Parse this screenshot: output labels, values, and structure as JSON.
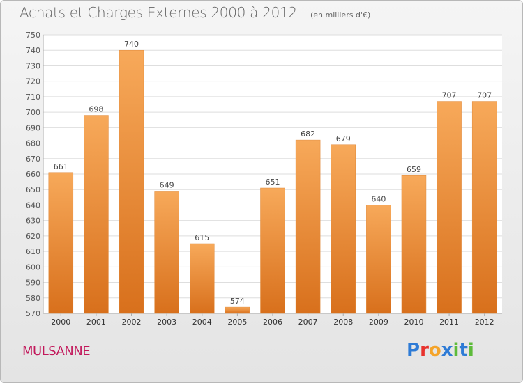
{
  "header": {
    "title": "Achats et Charges Externes 2000 à 2012",
    "unit": "(en milliers d'€)"
  },
  "commune": "MULSANNE",
  "logo": {
    "text": "Proxiti",
    "letter_colors": [
      "#2e7bd6",
      "#e8322d",
      "#f4a42a",
      "#2e7bd6",
      "#5dbb3a",
      "#2e7bd6",
      "#5dbb3a"
    ]
  },
  "colors": {
    "bar_top": "#f7a95a",
    "bar_bottom": "#d8701c",
    "grid": "#dedede"
  },
  "chart_data": {
    "type": "bar",
    "title": "Achats et Charges Externes 2000 à 2012",
    "subtitle": "(en milliers d'€)",
    "categories": [
      "2000",
      "2001",
      "2002",
      "2003",
      "2004",
      "2005",
      "2006",
      "2007",
      "2008",
      "2009",
      "2010",
      "2011",
      "2012"
    ],
    "values": [
      661,
      698,
      740,
      649,
      615,
      574,
      651,
      682,
      679,
      640,
      659,
      707,
      707
    ],
    "ylim": [
      570,
      750
    ],
    "yticks": [
      570,
      580,
      590,
      600,
      610,
      620,
      630,
      640,
      650,
      660,
      670,
      680,
      690,
      700,
      710,
      720,
      730,
      740,
      750
    ],
    "grid": true,
    "legend": "none"
  }
}
